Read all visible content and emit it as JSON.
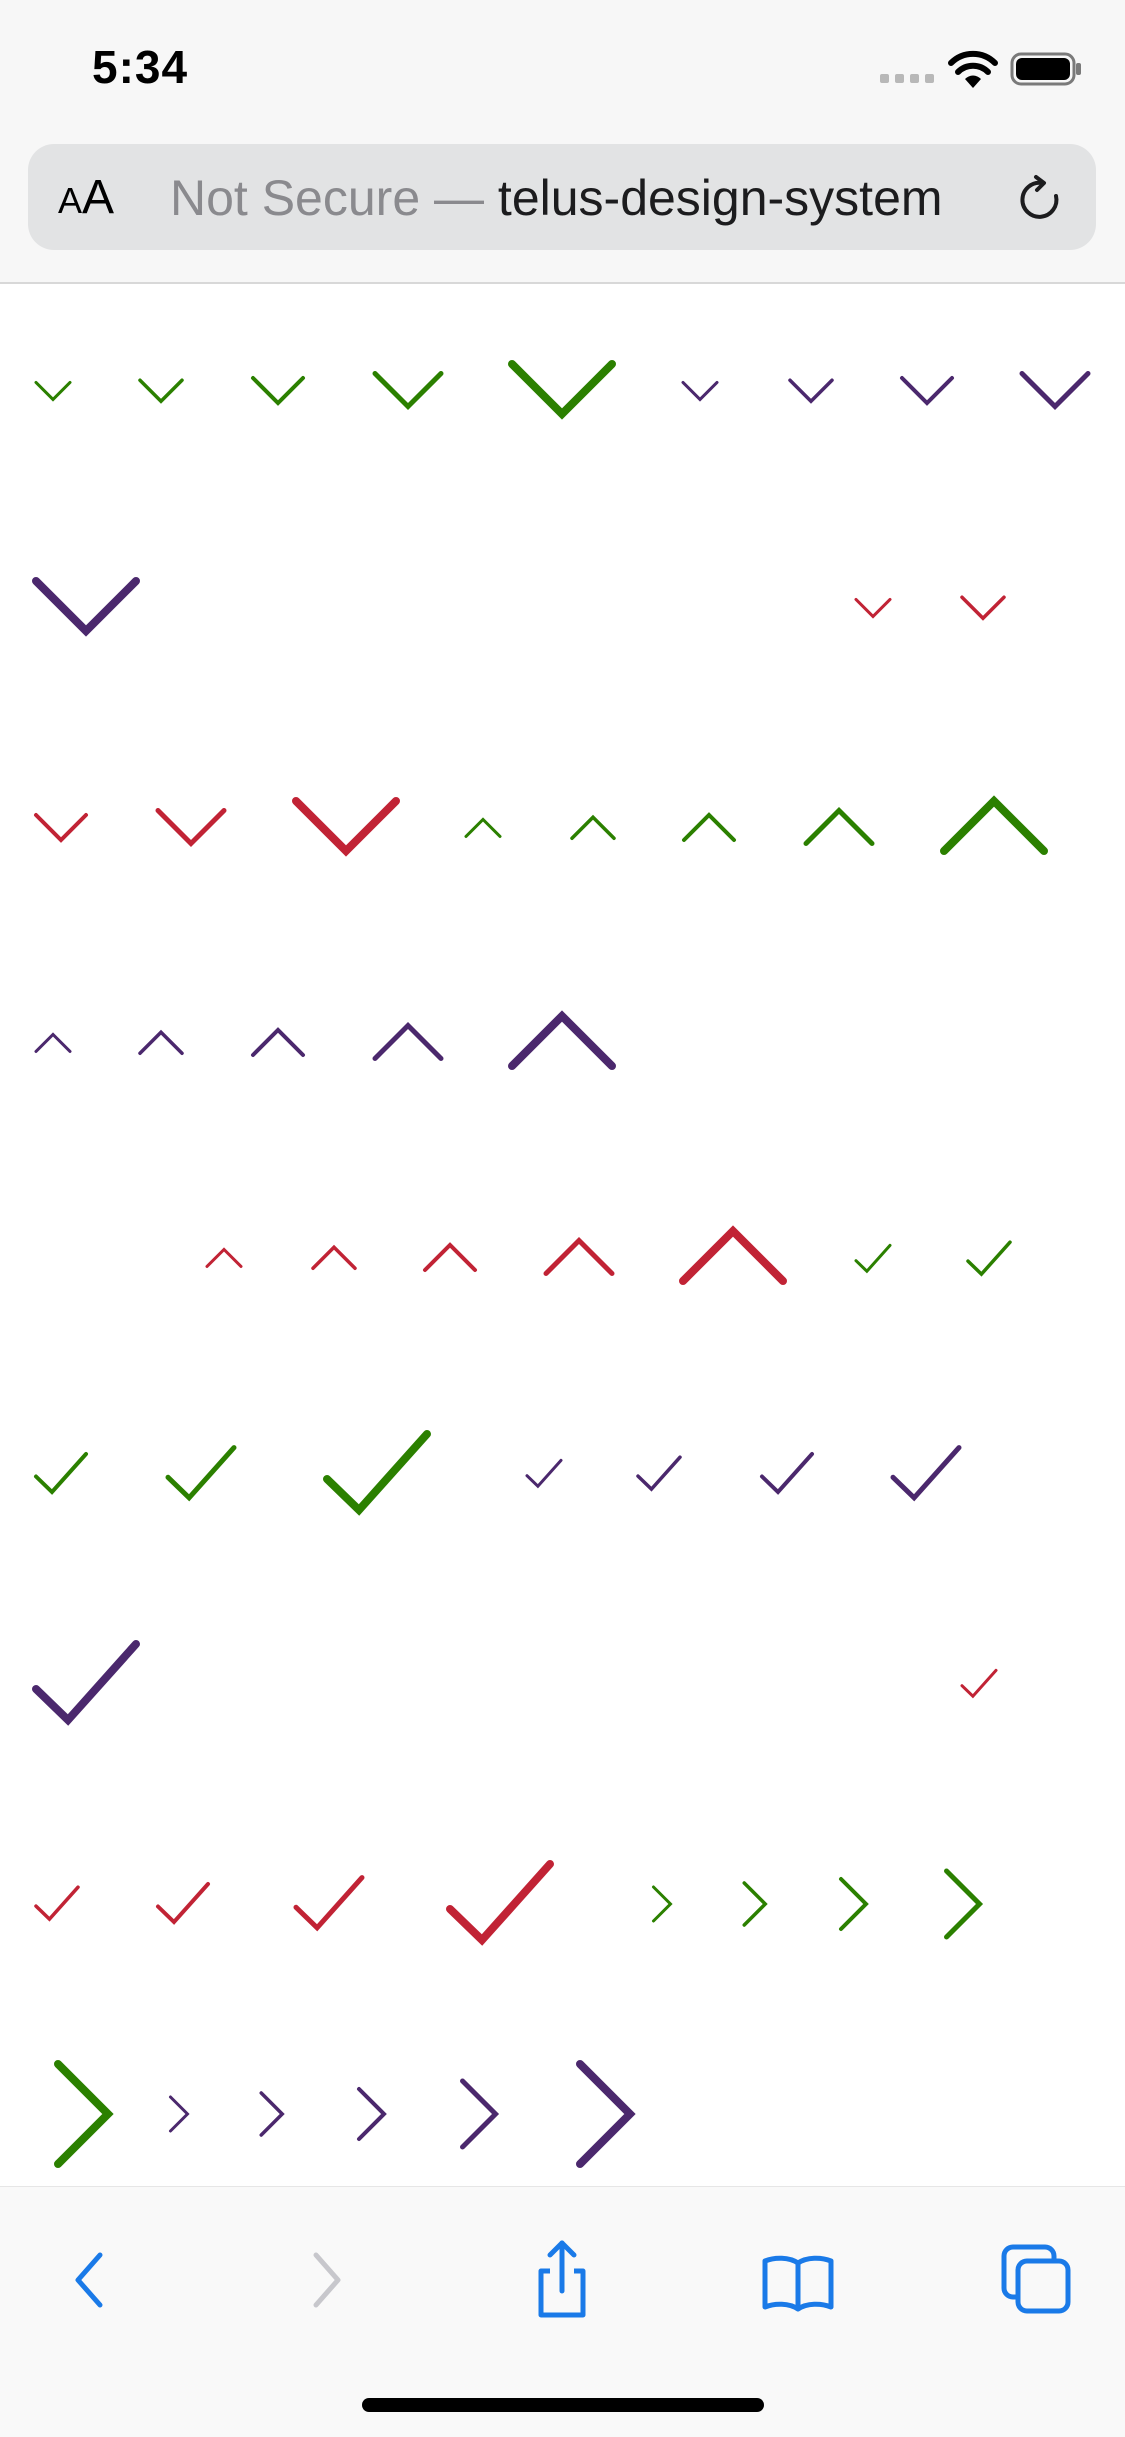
{
  "status_bar": {
    "time": "5:34",
    "signal_icon": "cellular-signal-icon",
    "wifi_icon": "wifi-icon",
    "battery_icon": "battery-icon"
  },
  "address_bar": {
    "text_size_label_small": "A",
    "text_size_label_large": "A",
    "not_secure_label": "Not Secure —",
    "host": "telus-design-system",
    "reload_icon": "reload-icon"
  },
  "colors": {
    "green": "#2b8000",
    "purple": "#4b286d",
    "red": "#c12335"
  },
  "icons": [
    {
      "shape": "chevron-down",
      "color": "green",
      "row": 1,
      "size": "xs"
    },
    {
      "shape": "chevron-down",
      "color": "green",
      "row": 1,
      "size": "s"
    },
    {
      "shape": "chevron-down",
      "color": "green",
      "row": 1,
      "size": "m"
    },
    {
      "shape": "chevron-down",
      "color": "green",
      "row": 1,
      "size": "l"
    },
    {
      "shape": "chevron-down",
      "color": "green",
      "row": 1,
      "size": "xl"
    },
    {
      "shape": "chevron-down",
      "color": "purple",
      "row": 1,
      "size": "xs"
    },
    {
      "shape": "chevron-down",
      "color": "purple",
      "row": 1,
      "size": "s"
    },
    {
      "shape": "chevron-down",
      "color": "purple",
      "row": 1,
      "size": "m"
    },
    {
      "shape": "chevron-down",
      "color": "purple",
      "row": 1,
      "size": "l"
    },
    {
      "shape": "chevron-down",
      "color": "purple",
      "row": 2,
      "size": "xl"
    },
    {
      "shape": "chevron-down",
      "color": "red",
      "row": 2,
      "size": "xs"
    },
    {
      "shape": "chevron-down",
      "color": "red",
      "row": 2,
      "size": "s"
    },
    {
      "shape": "chevron-down",
      "color": "red",
      "row": 3,
      "size": "m"
    },
    {
      "shape": "chevron-down",
      "color": "red",
      "row": 3,
      "size": "l"
    },
    {
      "shape": "chevron-down",
      "color": "red",
      "row": 3,
      "size": "xl"
    },
    {
      "shape": "chevron-up",
      "color": "green",
      "row": 3,
      "size": "xs"
    },
    {
      "shape": "chevron-up",
      "color": "green",
      "row": 3,
      "size": "s"
    },
    {
      "shape": "chevron-up",
      "color": "green",
      "row": 3,
      "size": "m"
    },
    {
      "shape": "chevron-up",
      "color": "green",
      "row": 3,
      "size": "l"
    },
    {
      "shape": "chevron-up",
      "color": "green",
      "row": 3,
      "size": "xl"
    },
    {
      "shape": "chevron-up",
      "color": "purple",
      "row": 4,
      "size": "xs"
    },
    {
      "shape": "chevron-up",
      "color": "purple",
      "row": 4,
      "size": "s"
    },
    {
      "shape": "chevron-up",
      "color": "purple",
      "row": 4,
      "size": "m"
    },
    {
      "shape": "chevron-up",
      "color": "purple",
      "row": 4,
      "size": "l"
    },
    {
      "shape": "chevron-up",
      "color": "purple",
      "row": 4,
      "size": "xl"
    },
    {
      "shape": "chevron-up",
      "color": "red",
      "row": 5,
      "size": "xs"
    },
    {
      "shape": "chevron-up",
      "color": "red",
      "row": 5,
      "size": "s"
    },
    {
      "shape": "chevron-up",
      "color": "red",
      "row": 5,
      "size": "m"
    },
    {
      "shape": "chevron-up",
      "color": "red",
      "row": 5,
      "size": "l"
    },
    {
      "shape": "chevron-up",
      "color": "red",
      "row": 5,
      "size": "xl"
    },
    {
      "shape": "checkmark",
      "color": "green",
      "row": 5,
      "size": "xs"
    },
    {
      "shape": "checkmark",
      "color": "green",
      "row": 5,
      "size": "s"
    },
    {
      "shape": "checkmark",
      "color": "green",
      "row": 6,
      "size": "m"
    },
    {
      "shape": "checkmark",
      "color": "green",
      "row": 6,
      "size": "l"
    },
    {
      "shape": "checkmark",
      "color": "green",
      "row": 6,
      "size": "xl"
    },
    {
      "shape": "checkmark",
      "color": "purple",
      "row": 6,
      "size": "xs"
    },
    {
      "shape": "checkmark",
      "color": "purple",
      "row": 6,
      "size": "s"
    },
    {
      "shape": "checkmark",
      "color": "purple",
      "row": 6,
      "size": "m"
    },
    {
      "shape": "checkmark",
      "color": "purple",
      "row": 6,
      "size": "l"
    },
    {
      "shape": "checkmark",
      "color": "purple",
      "row": 7,
      "size": "xl"
    },
    {
      "shape": "checkmark",
      "color": "red",
      "row": 7,
      "size": "xs"
    },
    {
      "shape": "checkmark",
      "color": "red",
      "row": 8,
      "size": "s"
    },
    {
      "shape": "checkmark",
      "color": "red",
      "row": 8,
      "size": "m"
    },
    {
      "shape": "checkmark",
      "color": "red",
      "row": 8,
      "size": "l"
    },
    {
      "shape": "checkmark",
      "color": "red",
      "row": 8,
      "size": "xl"
    },
    {
      "shape": "chevron-right",
      "color": "green",
      "row": 8,
      "size": "xs"
    },
    {
      "shape": "chevron-right",
      "color": "green",
      "row": 8,
      "size": "s"
    },
    {
      "shape": "chevron-right",
      "color": "green",
      "row": 8,
      "size": "m"
    },
    {
      "shape": "chevron-right",
      "color": "green",
      "row": 8,
      "size": "l"
    },
    {
      "shape": "chevron-right",
      "color": "green",
      "row": 9,
      "size": "xl"
    },
    {
      "shape": "chevron-right",
      "color": "purple",
      "row": 9,
      "size": "xs"
    },
    {
      "shape": "chevron-right",
      "color": "purple",
      "row": 9,
      "size": "s"
    },
    {
      "shape": "chevron-right",
      "color": "purple",
      "row": 9,
      "size": "m"
    },
    {
      "shape": "chevron-right",
      "color": "purple",
      "row": 9,
      "size": "l"
    },
    {
      "shape": "chevron-right",
      "color": "purple",
      "row": 9,
      "size": "xl"
    }
  ],
  "bottom_toolbar": {
    "back_icon": "back-icon",
    "forward_icon": "forward-icon",
    "share_icon": "share-icon",
    "bookmarks_icon": "bookmarks-icon",
    "tabs_icon": "tabs-icon"
  }
}
